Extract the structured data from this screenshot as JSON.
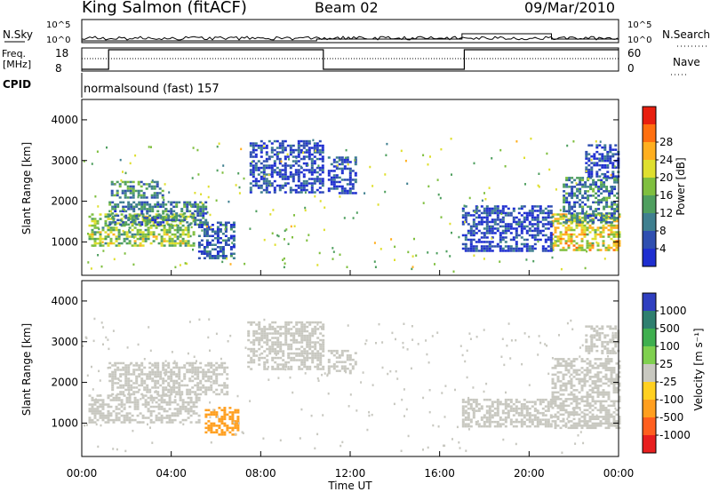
{
  "header": {
    "station": "King Salmon (fitACF)",
    "beam": "Beam 02",
    "date": "09/Mar/2010"
  },
  "top_panels": {
    "nsky_label": "N.Sky",
    "nsky_ticks": [
      "10^5",
      "10^0"
    ],
    "nsearch_label": "N.Search",
    "nsearch_ticks": [
      "10^5",
      "10^0"
    ],
    "freq_label": "Freq.",
    "freq_unit": "[MHz]",
    "freq_ticks": [
      18,
      8
    ],
    "nave_label": "Nave",
    "nave_ticks": [
      60,
      0
    ],
    "cpid_label": "CPID",
    "cpid_text": "normalsound (fast) 157"
  },
  "axes": {
    "time_ticks": [
      "00:00",
      "04:00",
      "08:00",
      "12:00",
      "16:00",
      "20:00",
      "00:00"
    ],
    "xlabel": "Time UT",
    "ylabel": "Slant Range [km]",
    "y_ticks": [
      1000,
      2000,
      3000,
      4000
    ]
  },
  "colorbars": {
    "power": {
      "label": "Power [dB]",
      "ticks": [
        4,
        8,
        12,
        16,
        20,
        24,
        28
      ],
      "colors": [
        "#1f2fd0",
        "#2f4fb0",
        "#3f7f8f",
        "#4f9f5f",
        "#7fbf3f",
        "#dfdf2f",
        "#ffaf1f",
        "#ff6f0f",
        "#e81f0f"
      ]
    },
    "velocity": {
      "label": "Velocity [m s⁻¹]",
      "ticks": [
        1000,
        500,
        100,
        25,
        -25,
        -100,
        -500,
        -1000
      ],
      "colors": [
        "#2f3fc0",
        "#2f7f6f",
        "#3faf4f",
        "#7fd04f",
        "#c8c8c0",
        "#ffd020",
        "#ff9f1f",
        "#ff5f1f",
        "#e81f1f"
      ]
    }
  },
  "chart_data": [
    {
      "type": "line",
      "name": "sky/search noise",
      "xlabel": "",
      "ylabel": "",
      "ylim": [
        "10^0",
        "10^5"
      ],
      "note": "log scale"
    },
    {
      "type": "line",
      "name": "frequency and nave",
      "series": [
        {
          "name": "Freq.",
          "x": [
            0.0,
            1.2,
            1.2,
            10.8,
            10.8,
            12.3,
            12.3,
            17.1,
            17.1,
            24.0
          ],
          "values": [
            8,
            8,
            18,
            18,
            8,
            8,
            8,
            8,
            18,
            18
          ]
        }
      ],
      "ylim": [
        8,
        18
      ]
    },
    {
      "type": "heatmap",
      "name": "power",
      "xlim": [
        0,
        24
      ],
      "ylim": [
        180,
        4500
      ],
      "blobs": [
        {
          "t0": 0.3,
          "t1": 5.0,
          "r0": 900,
          "r1": 1700,
          "v": 18
        },
        {
          "t0": 1.2,
          "t1": 5.6,
          "r0": 1400,
          "r1": 2000,
          "v": 10
        },
        {
          "t0": 1.3,
          "t1": 3.6,
          "r0": 2100,
          "r1": 2500,
          "v": 12
        },
        {
          "t0": 5.2,
          "t1": 6.8,
          "r0": 600,
          "r1": 1500,
          "v": 6
        },
        {
          "t0": 7.5,
          "t1": 10.8,
          "r0": 2200,
          "r1": 3500,
          "v": 4
        },
        {
          "t0": 11.0,
          "t1": 12.3,
          "r0": 2200,
          "r1": 3100,
          "v": 4
        },
        {
          "t0": 21.0,
          "t1": 24.0,
          "r0": 800,
          "r1": 1700,
          "v": 22
        },
        {
          "t0": 21.5,
          "t1": 24.0,
          "r0": 1500,
          "r1": 2600,
          "v": 10
        },
        {
          "t0": 22.5,
          "t1": 24.0,
          "r0": 2600,
          "r1": 3400,
          "v": 4
        },
        {
          "t0": 17.0,
          "t1": 21.0,
          "r0": 800,
          "r1": 1900,
          "v": 4
        }
      ]
    },
    {
      "type": "heatmap",
      "name": "velocity",
      "xlim": [
        0,
        24
      ],
      "ylim": [
        180,
        4500
      ],
      "blobs": [
        {
          "t0": 0.3,
          "t1": 5.3,
          "r0": 1000,
          "r1": 1700,
          "v": 0
        },
        {
          "t0": 1.2,
          "t1": 6.5,
          "r0": 1700,
          "r1": 2500,
          "v": 0
        },
        {
          "t0": 5.5,
          "t1": 7.0,
          "r0": 700,
          "r1": 1400,
          "v": -120
        },
        {
          "t0": 7.4,
          "t1": 10.8,
          "r0": 2300,
          "r1": 3500,
          "v": 0
        },
        {
          "t0": 11.0,
          "t1": 12.2,
          "r0": 2200,
          "r1": 2800,
          "v": 0
        },
        {
          "t0": 17.0,
          "t1": 21.0,
          "r0": 900,
          "r1": 1600,
          "v": 0
        },
        {
          "t0": 21.0,
          "t1": 24.0,
          "r0": 900,
          "r1": 2600,
          "v": 0
        },
        {
          "t0": 22.5,
          "t1": 24.0,
          "r0": 2700,
          "r1": 3400,
          "v": 0
        }
      ]
    }
  ]
}
